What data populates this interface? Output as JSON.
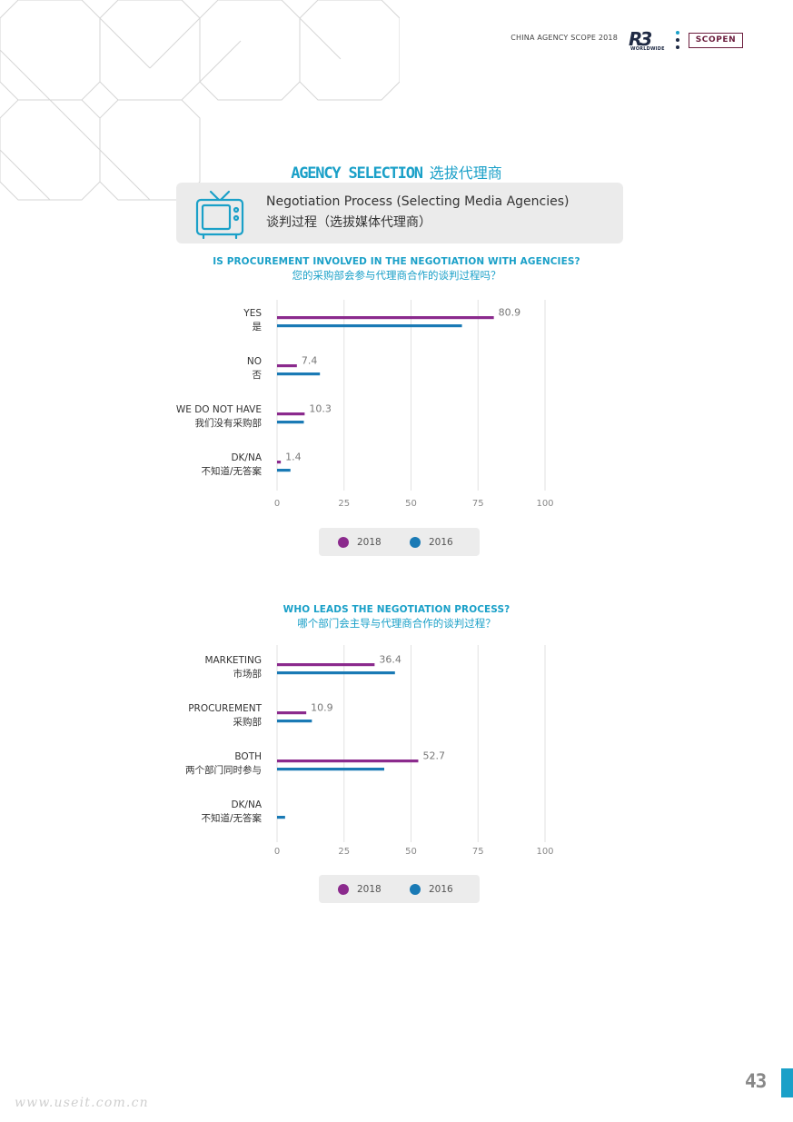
{
  "header": {
    "report_title": "CHINA AGENCY SCOPE 2018",
    "r3_logo": "R3",
    "r3_sub": "WORLDWIDE",
    "scopen_logo": "SCOPEN"
  },
  "section": {
    "title_en": "AGENCY SELECTION",
    "title_cn": "选拔代理商"
  },
  "banner": {
    "icon": "tv-icon",
    "line1": "Negotiation Process (Selecting Media Agencies)",
    "line2": "谈判过程（选拔媒体代理商）"
  },
  "colors": {
    "accent": "#1aa0c8",
    "series_2018": "#8b2a8d",
    "series_2016": "#1a7ab5"
  },
  "chart_data": [
    {
      "type": "bar",
      "orientation": "horizontal",
      "title": "IS PROCUREMENT INVOLVED IN THE NEGOTIATION WITH AGENCIES?",
      "title_cn": "您的采购部会参与代理商合作的谈判过程吗？",
      "categories": [
        {
          "en": "YES",
          "cn": "是"
        },
        {
          "en": "NO",
          "cn": "否"
        },
        {
          "en": "WE DO NOT HAVE",
          "cn": "我们没有采购部"
        },
        {
          "en": "DK/NA",
          "cn": "不知道/无答案"
        }
      ],
      "series": [
        {
          "name": "2018",
          "color": "#8b2a8d",
          "values": [
            80.9,
            7.4,
            10.3,
            1.4
          ],
          "labels": [
            "80.9",
            "7.4",
            "10.3",
            "1.4"
          ]
        },
        {
          "name": "2016",
          "color": "#1a7ab5",
          "values": [
            69,
            16,
            10,
            5
          ],
          "labels": []
        }
      ],
      "xlim": [
        0,
        100
      ],
      "xticks": [
        "0",
        "25",
        "50",
        "75",
        "100"
      ],
      "grid": true,
      "legend": [
        "2018",
        "2016"
      ]
    },
    {
      "type": "bar",
      "orientation": "horizontal",
      "title": "WHO LEADS THE NEGOTIATION PROCESS?",
      "title_cn": "哪个部门会主导与代理商合作的谈判过程？",
      "categories": [
        {
          "en": "MARKETING",
          "cn": "市场部"
        },
        {
          "en": "PROCUREMENT",
          "cn": "采购部"
        },
        {
          "en": "BOTH",
          "cn": "两个部门同时参与"
        },
        {
          "en": "DK/NA",
          "cn": "不知道/无答案"
        }
      ],
      "series": [
        {
          "name": "2018",
          "color": "#8b2a8d",
          "values": [
            36.4,
            10.9,
            52.7,
            0
          ],
          "labels": [
            "36.4",
            "10.9",
            "52.7",
            ""
          ]
        },
        {
          "name": "2016",
          "color": "#1a7ab5",
          "values": [
            44,
            13,
            40,
            3
          ],
          "labels": []
        }
      ],
      "xlim": [
        0,
        100
      ],
      "xticks": [
        "0",
        "25",
        "50",
        "75",
        "100"
      ],
      "grid": true,
      "legend": [
        "2018",
        "2016"
      ]
    }
  ],
  "footer": {
    "page_number": "43",
    "watermark": "www.useit.com.cn"
  }
}
